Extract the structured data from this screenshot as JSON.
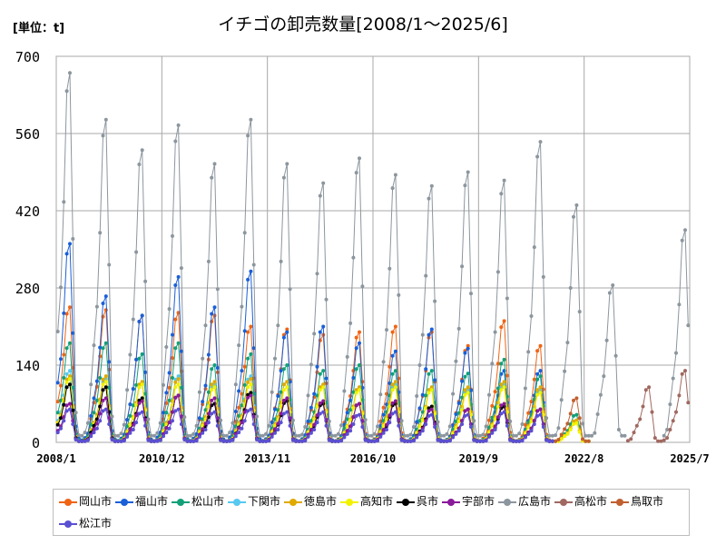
{
  "unit_label": "[単位：t]",
  "title": "イチゴの卸売数量[2008/1～2025/6]",
  "chart_data": {
    "type": "line",
    "title": "イチゴの卸売数量[2008/1～2025/6]",
    "unit": "[単位：t]",
    "xlabel": "",
    "ylabel": "",
    "ylim": [
      0,
      700
    ],
    "y_ticks": [
      0,
      140,
      280,
      420,
      560,
      700
    ],
    "x_ticks": [
      "2008/1",
      "2010/12",
      "2013/11",
      "2016/10",
      "2019/9",
      "2022/8",
      "2025/7"
    ],
    "grid": true,
    "legend_position": "bottom",
    "x_note": "each series value list is one value per month starting 2008/1",
    "series": [
      {
        "name": "岡山市",
        "color": "#f06414",
        "peaks": [
          245,
          240,
          230,
          235,
          230,
          210,
          205,
          195,
          200,
          210,
          200,
          175,
          220,
          175,
          0,
          0,
          0,
          0
        ]
      },
      {
        "name": "福山市",
        "color": "#1a5fd8",
        "peaks": [
          360,
          265,
          230,
          300,
          245,
          310,
          200,
          210,
          180,
          165,
          205,
          170,
          130,
          130,
          0,
          0,
          0,
          0
        ]
      },
      {
        "name": "松山市",
        "color": "#12a07a",
        "peaks": [
          180,
          180,
          160,
          180,
          140,
          160,
          140,
          130,
          140,
          130,
          130,
          125,
          150,
          120,
          50,
          0,
          0,
          0
        ]
      },
      {
        "name": "下関市",
        "color": "#58c8f0",
        "peaks": [
          130,
          115,
          105,
          120,
          105,
          120,
          110,
          105,
          100,
          105,
          100,
          95,
          105,
          95,
          40,
          0,
          0,
          0
        ]
      },
      {
        "name": "徳島市",
        "color": "#e0aa00",
        "peaks": [
          120,
          120,
          110,
          115,
          110,
          115,
          110,
          105,
          100,
          110,
          100,
          100,
          110,
          100,
          40,
          0,
          0,
          0
        ]
      },
      {
        "name": "高知市",
        "color": "#f2f200",
        "peaks": [
          115,
          110,
          105,
          105,
          100,
          105,
          100,
          100,
          95,
          100,
          95,
          90,
          100,
          90,
          35,
          0,
          0,
          0
        ]
      },
      {
        "name": "呉市",
        "color": "#000000",
        "peaks": [
          105,
          100,
          80,
          85,
          70,
          90,
          75,
          70,
          70,
          70,
          65,
          60,
          65,
          60,
          0,
          0,
          0,
          0
        ]
      },
      {
        "name": "宇部市",
        "color": "#8a1a9a",
        "peaks": [
          70,
          80,
          75,
          85,
          80,
          85,
          80,
          75,
          70,
          75,
          60,
          60,
          70,
          60,
          0,
          0,
          0,
          0
        ]
      },
      {
        "name": "広島市",
        "color": "#8c969e",
        "peaks": [
          670,
          585,
          530,
          575,
          505,
          585,
          505,
          470,
          515,
          485,
          465,
          490,
          475,
          545,
          430,
          285,
          0,
          385
        ]
      },
      {
        "name": "高松市",
        "color": "#a06860",
        "peaks": [
          0,
          0,
          0,
          0,
          0,
          0,
          0,
          0,
          0,
          0,
          0,
          0,
          0,
          0,
          0,
          0,
          100,
          130
        ]
      },
      {
        "name": "鳥取市",
        "color": "#c06030",
        "peaks": [
          0,
          0,
          0,
          0,
          0,
          0,
          0,
          0,
          0,
          0,
          0,
          0,
          0,
          0,
          80,
          0,
          0,
          0
        ]
      },
      {
        "name": "松江市",
        "color": "#5a50d2",
        "peaks": [
          60,
          60,
          55,
          60,
          55,
          60,
          55,
          55,
          50,
          55,
          50,
          50,
          55,
          50,
          0,
          0,
          0,
          0
        ]
      }
    ]
  }
}
